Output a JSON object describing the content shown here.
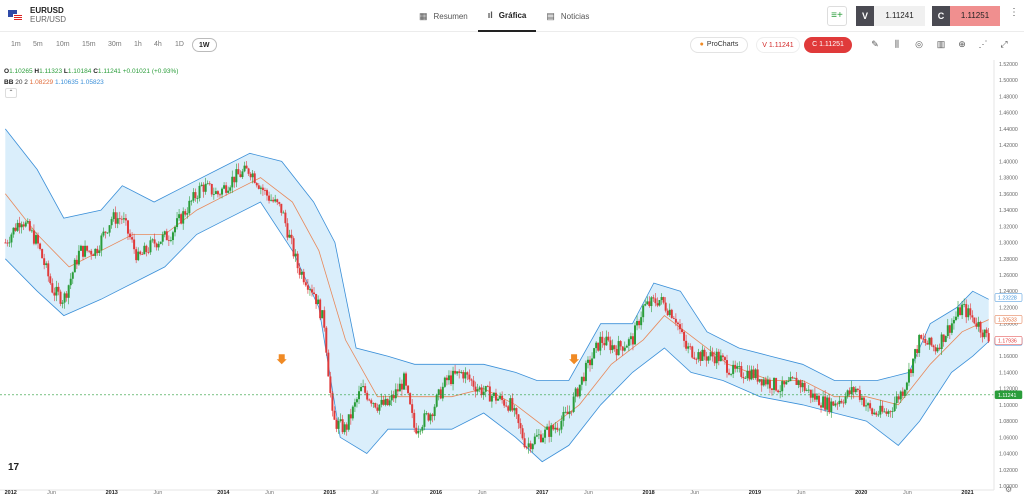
{
  "header": {
    "symbol": "EURUSD",
    "pair": "EUR/USD",
    "tabs": [
      {
        "label": "Resumen",
        "icon": "grid-icon"
      },
      {
        "label": "Gráfica",
        "icon": "chart-icon"
      },
      {
        "label": "Noticias",
        "icon": "news-icon"
      }
    ],
    "sell_label": "V",
    "sell_price": "1.11241",
    "buy_label": "C",
    "buy_price": "1.11251"
  },
  "timeframes": [
    "1m",
    "5m",
    "10m",
    "15m",
    "30m",
    "1h",
    "4h",
    "1D",
    "1W"
  ],
  "active_timeframe": "1W",
  "toolbar": {
    "procharts": "ProCharts",
    "sell_pill": "V 1.11241",
    "buy_pill": "C 1.11251"
  },
  "legend": {
    "o_key": "O",
    "o_val": "1.10265",
    "h_key": "H",
    "h_val": "1.11323",
    "l_key": "L",
    "l_val": "1.10184",
    "c_key": "C",
    "c_val": "1.11241",
    "change": "+0.01021 (+0.93%)",
    "bb_label": "BB",
    "bb_params": "20 2",
    "bb_mid": "1.08229",
    "bb_upper": "1.10635",
    "bb_lower": "1.05823"
  },
  "chart_data": {
    "type": "candlestick",
    "y_ticks": [
      "1.52000",
      "1.50000",
      "1.48000",
      "1.46000",
      "1.44000",
      "1.42000",
      "1.40000",
      "1.38000",
      "1.36000",
      "1.34000",
      "1.32000",
      "1.30000",
      "1.28000",
      "1.26000",
      "1.24000",
      "1.22000",
      "1.20000",
      "1.18000",
      "1.16000",
      "1.14000",
      "1.12000",
      "1.10000",
      "1.08000",
      "1.06000",
      "1.04000",
      "1.02000",
      "1.00000"
    ],
    "ylim": [
      1.0,
      1.52
    ],
    "x_ticks": [
      "2012",
      "Jun",
      "2013",
      "Jun",
      "2014",
      "Jun",
      "2015",
      "Jul",
      "2016",
      "Jun",
      "2017",
      "Jun",
      "2018",
      "Jun",
      "2019",
      "Jun",
      "2020",
      "Jun",
      "2021"
    ],
    "price_labels": [
      {
        "text": "1.23228",
        "value": 1.23228,
        "color": "#3a8fd8"
      },
      {
        "text": "1.20533",
        "value": 1.20533,
        "color": "#e06a38"
      },
      {
        "text": "1.17838",
        "value": 1.17838,
        "color": "#3a8fd8"
      },
      {
        "text": "1.17936",
        "value": 1.17936,
        "color": "#e03a3a"
      },
      {
        "text": "1.11241",
        "value": 1.11241,
        "color": "#2a9d3a"
      }
    ],
    "last_price": 1.11241,
    "close_path": [
      [
        2012.0,
        1.3
      ],
      [
        2012.15,
        1.33
      ],
      [
        2012.3,
        1.3
      ],
      [
        2012.45,
        1.24
      ],
      [
        2012.55,
        1.23
      ],
      [
        2012.7,
        1.29
      ],
      [
        2012.85,
        1.29
      ],
      [
        2013.0,
        1.33
      ],
      [
        2013.1,
        1.33
      ],
      [
        2013.25,
        1.28
      ],
      [
        2013.4,
        1.3
      ],
      [
        2013.55,
        1.31
      ],
      [
        2013.7,
        1.34
      ],
      [
        2013.85,
        1.37
      ],
      [
        2014.0,
        1.36
      ],
      [
        2014.15,
        1.38
      ],
      [
        2014.3,
        1.39
      ],
      [
        2014.45,
        1.36
      ],
      [
        2014.6,
        1.34
      ],
      [
        2014.75,
        1.27
      ],
      [
        2014.9,
        1.24
      ],
      [
        2015.0,
        1.2
      ],
      [
        2015.08,
        1.08
      ],
      [
        2015.2,
        1.07
      ],
      [
        2015.35,
        1.12
      ],
      [
        2015.5,
        1.1
      ],
      [
        2015.6,
        1.1
      ],
      [
        2015.75,
        1.13
      ],
      [
        2015.85,
        1.07
      ],
      [
        2016.0,
        1.09
      ],
      [
        2016.15,
        1.13
      ],
      [
        2016.3,
        1.14
      ],
      [
        2016.45,
        1.12
      ],
      [
        2016.6,
        1.11
      ],
      [
        2016.75,
        1.1
      ],
      [
        2016.9,
        1.05
      ],
      [
        2017.0,
        1.06
      ],
      [
        2017.15,
        1.07
      ],
      [
        2017.3,
        1.09
      ],
      [
        2017.45,
        1.14
      ],
      [
        2017.6,
        1.18
      ],
      [
        2017.75,
        1.17
      ],
      [
        2017.9,
        1.18
      ],
      [
        2018.0,
        1.22
      ],
      [
        2018.15,
        1.23
      ],
      [
        2018.3,
        1.21
      ],
      [
        2018.4,
        1.17
      ],
      [
        2018.55,
        1.16
      ],
      [
        2018.7,
        1.16
      ],
      [
        2018.85,
        1.14
      ],
      [
        2019.0,
        1.14
      ],
      [
        2019.15,
        1.13
      ],
      [
        2019.3,
        1.12
      ],
      [
        2019.45,
        1.13
      ],
      [
        2019.6,
        1.11
      ],
      [
        2019.75,
        1.1
      ],
      [
        2019.9,
        1.11
      ],
      [
        2020.0,
        1.12
      ],
      [
        2020.15,
        1.09
      ],
      [
        2020.3,
        1.09
      ],
      [
        2020.45,
        1.12
      ],
      [
        2020.6,
        1.18
      ],
      [
        2020.75,
        1.17
      ],
      [
        2020.9,
        1.2
      ],
      [
        2021.0,
        1.22
      ],
      [
        2021.15,
        1.2
      ],
      [
        2021.25,
        1.18
      ]
    ],
    "bands": {
      "upper": [
        [
          2012.0,
          1.44
        ],
        [
          2012.3,
          1.39
        ],
        [
          2012.55,
          1.33
        ],
        [
          2012.9,
          1.34
        ],
        [
          2013.1,
          1.37
        ],
        [
          2013.4,
          1.35
        ],
        [
          2013.7,
          1.37
        ],
        [
          2014.0,
          1.39
        ],
        [
          2014.3,
          1.41
        ],
        [
          2014.6,
          1.4
        ],
        [
          2014.9,
          1.35
        ],
        [
          2015.1,
          1.3
        ],
        [
          2015.3,
          1.17
        ],
        [
          2015.6,
          1.16
        ],
        [
          2015.85,
          1.15
        ],
        [
          2016.2,
          1.15
        ],
        [
          2016.5,
          1.15
        ],
        [
          2016.8,
          1.14
        ],
        [
          2017.0,
          1.13
        ],
        [
          2017.3,
          1.13
        ],
        [
          2017.6,
          1.2
        ],
        [
          2017.9,
          1.2
        ],
        [
          2018.1,
          1.25
        ],
        [
          2018.35,
          1.24
        ],
        [
          2018.6,
          1.19
        ],
        [
          2018.9,
          1.17
        ],
        [
          2019.2,
          1.16
        ],
        [
          2019.5,
          1.15
        ],
        [
          2019.8,
          1.13
        ],
        [
          2020.0,
          1.13
        ],
        [
          2020.2,
          1.13
        ],
        [
          2020.5,
          1.14
        ],
        [
          2020.7,
          1.2
        ],
        [
          2020.95,
          1.22
        ],
        [
          2021.1,
          1.24
        ],
        [
          2021.25,
          1.23
        ]
      ],
      "middle": [
        [
          2012.0,
          1.36
        ],
        [
          2012.3,
          1.31
        ],
        [
          2012.6,
          1.27
        ],
        [
          2012.9,
          1.29
        ],
        [
          2013.2,
          1.31
        ],
        [
          2013.5,
          1.31
        ],
        [
          2013.8,
          1.34
        ],
        [
          2014.1,
          1.36
        ],
        [
          2014.4,
          1.38
        ],
        [
          2014.7,
          1.35
        ],
        [
          2014.95,
          1.29
        ],
        [
          2015.2,
          1.18
        ],
        [
          2015.5,
          1.11
        ],
        [
          2015.8,
          1.11
        ],
        [
          2016.2,
          1.11
        ],
        [
          2016.5,
          1.12
        ],
        [
          2016.8,
          1.1
        ],
        [
          2017.1,
          1.07
        ],
        [
          2017.4,
          1.1
        ],
        [
          2017.7,
          1.15
        ],
        [
          2018.0,
          1.18
        ],
        [
          2018.2,
          1.21
        ],
        [
          2018.5,
          1.18
        ],
        [
          2018.8,
          1.15
        ],
        [
          2019.2,
          1.13
        ],
        [
          2019.5,
          1.13
        ],
        [
          2019.8,
          1.11
        ],
        [
          2020.1,
          1.11
        ],
        [
          2020.4,
          1.1
        ],
        [
          2020.7,
          1.15
        ],
        [
          2021.0,
          1.19
        ],
        [
          2021.25,
          1.205
        ]
      ],
      "lower": [
        [
          2012.0,
          1.28
        ],
        [
          2012.3,
          1.24
        ],
        [
          2012.55,
          1.21
        ],
        [
          2012.9,
          1.23
        ],
        [
          2013.2,
          1.25
        ],
        [
          2013.5,
          1.27
        ],
        [
          2013.8,
          1.31
        ],
        [
          2014.1,
          1.33
        ],
        [
          2014.4,
          1.35
        ],
        [
          2014.7,
          1.29
        ],
        [
          2014.95,
          1.22
        ],
        [
          2015.15,
          1.06
        ],
        [
          2015.4,
          1.04
        ],
        [
          2015.6,
          1.07
        ],
        [
          2015.9,
          1.07
        ],
        [
          2016.2,
          1.07
        ],
        [
          2016.5,
          1.09
        ],
        [
          2016.8,
          1.06
        ],
        [
          2017.05,
          1.03
        ],
        [
          2017.3,
          1.05
        ],
        [
          2017.6,
          1.1
        ],
        [
          2017.9,
          1.14
        ],
        [
          2018.2,
          1.17
        ],
        [
          2018.45,
          1.14
        ],
        [
          2018.75,
          1.13
        ],
        [
          2019.1,
          1.11
        ],
        [
          2019.5,
          1.1
        ],
        [
          2019.8,
          1.09
        ],
        [
          2020.1,
          1.08
        ],
        [
          2020.4,
          1.05
        ],
        [
          2020.6,
          1.08
        ],
        [
          2020.9,
          1.14
        ],
        [
          2021.1,
          1.16
        ],
        [
          2021.25,
          1.178
        ]
      ]
    },
    "markers": [
      {
        "x": 2014.6,
        "y": 1.155
      },
      {
        "x": 2017.35,
        "y": 1.155
      }
    ]
  },
  "colors": {
    "up": "#2a9d3a",
    "down": "#e03a3a",
    "band_fill": "#daeefb",
    "band_line": "#3a8fd8",
    "mid_line": "#e8885a",
    "marker": "#f08a24"
  }
}
